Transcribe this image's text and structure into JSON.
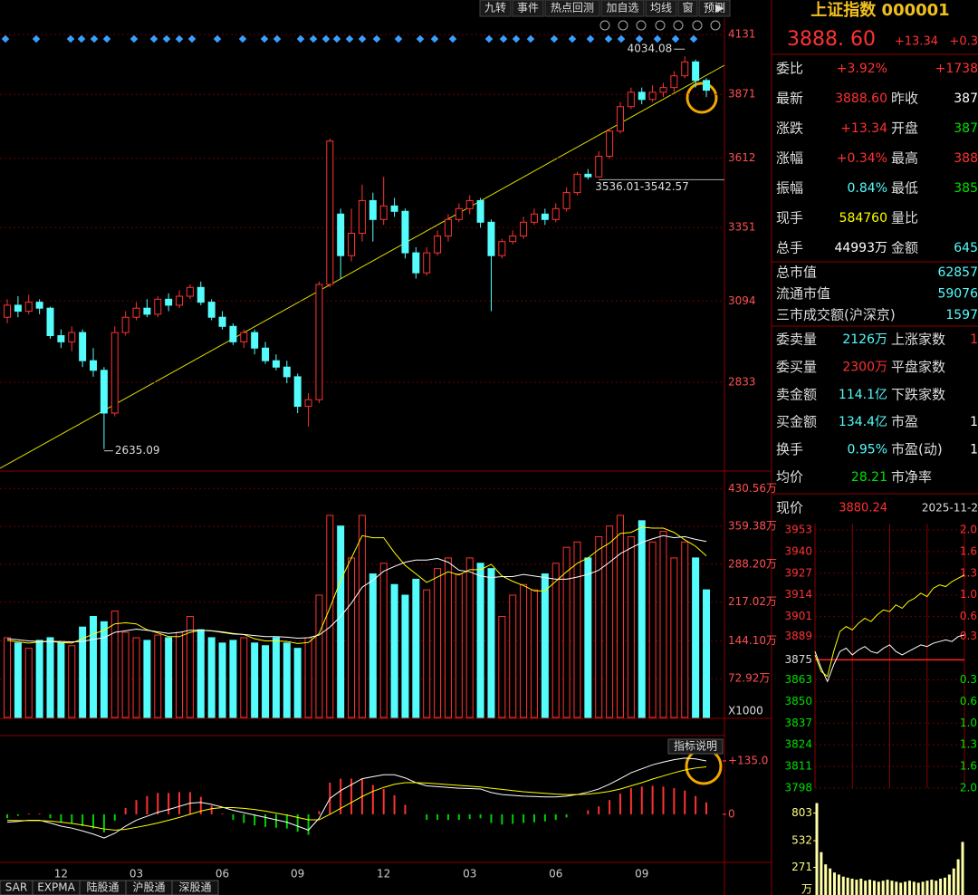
{
  "toolbar": {
    "buttons": [
      "九转",
      "事件",
      "热点回测",
      "加自选",
      "均线",
      "窗",
      "预测"
    ]
  },
  "tabs": [
    "SAR",
    "EXPMA",
    "陆股通",
    "沪股通",
    "深股通"
  ],
  "chart_data": [
    {
      "type": "candlestick",
      "categories": [
        null,
        null,
        null,
        null,
        null,
        "12",
        null,
        null,
        null,
        null,
        null,
        null,
        "03",
        null,
        null,
        null,
        null,
        null,
        null,
        null,
        "06",
        null,
        null,
        null,
        null,
        null,
        null,
        "09",
        null,
        null,
        null,
        null,
        null,
        null,
        null,
        "12",
        null,
        null,
        null,
        null,
        null,
        null,
        null,
        "03",
        null,
        null,
        null,
        null,
        null,
        null,
        null,
        "06",
        null,
        null,
        null,
        null,
        null,
        null,
        null,
        "09",
        null,
        null,
        null,
        null,
        null,
        null
      ],
      "open": [
        3040,
        3080,
        3060,
        3090,
        3070,
        2980,
        2960,
        2990,
        2900,
        2870,
        2740,
        2990,
        3040,
        3070,
        3050,
        3100,
        3080,
        3110,
        3140,
        3090,
        3040,
        3010,
        2960,
        2990,
        2940,
        2900,
        2880,
        2850,
        2760,
        2780,
        3150,
        3400,
        3250,
        3330,
        3450,
        3380,
        3430,
        3410,
        3260,
        3190,
        3260,
        3320,
        3380,
        3420,
        3450,
        3370,
        3250,
        3300,
        3320,
        3370,
        3400,
        3380,
        3420,
        3480,
        3550,
        3540,
        3620,
        3720,
        3820,
        3880,
        3850,
        3880,
        3900,
        3950,
        4010,
        3930
      ],
      "close": [
        3080,
        3060,
        3090,
        3070,
        2980,
        2960,
        2990,
        2900,
        2870,
        2740,
        2990,
        3040,
        3070,
        3050,
        3100,
        3080,
        3110,
        3140,
        3090,
        3040,
        3010,
        2960,
        2990,
        2940,
        2900,
        2880,
        2850,
        2760,
        2780,
        3150,
        3680,
        3250,
        3330,
        3450,
        3380,
        3430,
        3410,
        3260,
        3190,
        3260,
        3320,
        3380,
        3420,
        3450,
        3370,
        3250,
        3300,
        3320,
        3370,
        3400,
        3380,
        3420,
        3480,
        3550,
        3540,
        3620,
        3720,
        3820,
        3880,
        3850,
        3880,
        3900,
        3950,
        4010,
        3930,
        3888.6
      ],
      "high": [
        3100,
        3110,
        3115,
        3100,
        3075,
        3000,
        3010,
        3000,
        2940,
        2880,
        3010,
        3060,
        3090,
        3100,
        3110,
        3120,
        3130,
        3150,
        3160,
        3100,
        3060,
        3020,
        3000,
        3000,
        2960,
        2920,
        2900,
        2860,
        2800,
        3160,
        3690,
        3420,
        3420,
        3510,
        3480,
        3540,
        3460,
        3420,
        3280,
        3280,
        3340,
        3400,
        3440,
        3470,
        3460,
        3380,
        3310,
        3340,
        3390,
        3420,
        3420,
        3440,
        3500,
        3560,
        3570,
        3640,
        3730,
        3840,
        3900,
        3900,
        3910,
        3920,
        3970,
        4034.08,
        4020,
        3940
      ],
      "low": [
        3020,
        3040,
        3050,
        3050,
        2970,
        2940,
        2930,
        2880,
        2850,
        2635.09,
        2730,
        2980,
        3030,
        3040,
        3040,
        3060,
        3070,
        3100,
        3080,
        3030,
        3000,
        2950,
        2940,
        2920,
        2890,
        2870,
        2830,
        2740,
        2700,
        2770,
        3140,
        3170,
        3230,
        3300,
        3300,
        3360,
        3390,
        3240,
        3170,
        3180,
        3250,
        3300,
        3370,
        3400,
        3350,
        3060,
        3240,
        3290,
        3310,
        3360,
        3360,
        3370,
        3410,
        3470,
        3530,
        3536.01,
        3610,
        3710,
        3810,
        3830,
        3840,
        3860,
        3880,
        3940,
        3900,
        3860
      ],
      "ylim": [
        2578,
        4205
      ],
      "log_scale": true,
      "yticks": [
        4131,
        3871,
        3612,
        3351,
        3094,
        2833
      ],
      "grid": true,
      "up_color": "#ff3232",
      "down_color": "#54fcfc",
      "annotations": [
        "4034.08",
        "3536.01-3542.57",
        "2635.09"
      ]
    },
    {
      "type": "bar",
      "values": [
        150,
        140,
        130,
        145,
        150,
        140,
        135,
        170,
        190,
        180,
        200,
        160,
        150,
        145,
        155,
        150,
        160,
        190,
        165,
        150,
        140,
        145,
        150,
        140,
        135,
        150,
        140,
        130,
        150,
        230,
        380,
        360,
        300,
        380,
        270,
        290,
        250,
        230,
        260,
        240,
        280,
        300,
        270,
        300,
        290,
        280,
        190,
        230,
        250,
        240,
        270,
        290,
        320,
        330,
        300,
        340,
        360,
        380,
        340,
        370,
        330,
        350,
        300,
        330,
        300,
        240
      ],
      "lines": [
        {
          "color": "#ffff00",
          "values": [
            145,
            142,
            140,
            142,
            143,
            141,
            140,
            148,
            157,
            164,
            176,
            178,
            176,
            165,
            159,
            152,
            152,
            160,
            164,
            163,
            161,
            158,
            156,
            148,
            144,
            144,
            143,
            139,
            141,
            158,
            206,
            258,
            300,
            342,
            338,
            338,
            310,
            286,
            270,
            254,
            264,
            274,
            268,
            278,
            278,
            288,
            266,
            256,
            248,
            238,
            238,
            256,
            274,
            290,
            300,
            316,
            328,
            346,
            348,
            358,
            356,
            356,
            348,
            334,
            322,
            304
          ]
        },
        {
          "color": "#ffffff",
          "values": [
            148,
            146,
            144,
            143,
            143,
            143,
            142,
            143,
            147,
            150,
            160,
            163,
            166,
            164,
            161,
            158,
            160,
            164,
            164,
            163,
            160,
            157,
            156,
            154,
            152,
            152,
            151,
            149,
            150,
            155,
            170,
            190,
            215,
            245,
            258,
            275,
            284,
            292,
            296,
            296,
            299,
            292,
            277,
            274,
            266,
            263,
            265,
            265,
            269,
            266,
            263,
            260,
            260,
            264,
            269,
            277,
            292,
            308,
            319,
            329,
            336,
            342,
            338,
            340,
            335,
            331
          ]
        }
      ],
      "ylim": [
        0,
        460
      ],
      "yticks": [
        {
          "value": 430.56,
          "label": "430.56万"
        },
        {
          "value": 359.38,
          "label": "359.38万"
        },
        {
          "value": 288.2,
          "label": "288.20万"
        },
        {
          "value": 217.02,
          "label": "217.02万"
        },
        {
          "value": 144.1,
          "label": "144.10万"
        },
        {
          "value": 72.92,
          "label": "72.92万"
        }
      ],
      "unit_note": "X1000",
      "grid": true
    },
    {
      "type": "macd",
      "values": [
        -10,
        -4,
        2,
        2,
        -10,
        -20,
        -24,
        -30,
        -36,
        -46,
        -16,
        16,
        36,
        46,
        54,
        54,
        56,
        56,
        44,
        22,
        2,
        -14,
        -22,
        -28,
        -32,
        -34,
        -36,
        -44,
        -52,
        8,
        80,
        90,
        90,
        90,
        74,
        64,
        48,
        24,
        0,
        -14,
        -14,
        -14,
        -14,
        -12,
        -10,
        -22,
        -26,
        -24,
        -22,
        -20,
        -18,
        -14,
        -8,
        0,
        10,
        20,
        36,
        52,
        66,
        70,
        72,
        70,
        66,
        60,
        46,
        30
      ],
      "lines": [
        {
          "color": "#ffffff",
          "values": [
            -20,
            -18,
            -15,
            -15,
            -22,
            -30,
            -35,
            -42,
            -50,
            -60,
            -48,
            -30,
            -15,
            -5,
            5,
            12,
            20,
            28,
            30,
            25,
            18,
            10,
            4,
            -2,
            -8,
            -14,
            -20,
            -30,
            -40,
            -10,
            40,
            60,
            75,
            90,
            95,
            100,
            100,
            92,
            80,
            72,
            70,
            68,
            66,
            65,
            64,
            55,
            50,
            48,
            46,
            45,
            44,
            44,
            46,
            50,
            56,
            64,
            76,
            90,
            105,
            115,
            125,
            132,
            138,
            142,
            140,
            135
          ]
        },
        {
          "color": "#ffff00",
          "values": [
            -15,
            -16,
            -16,
            -16,
            -17,
            -20,
            -23,
            -27,
            -32,
            -37,
            -40,
            -38,
            -33,
            -28,
            -22,
            -15,
            -8,
            0,
            8,
            14,
            17,
            17,
            15,
            12,
            8,
            3,
            -2,
            -8,
            -14,
            -14,
            0,
            15,
            30,
            45,
            58,
            68,
            76,
            80,
            80,
            79,
            77,
            75,
            73,
            71,
            69,
            66,
            63,
            60,
            57,
            55,
            53,
            51,
            50,
            50,
            51,
            54,
            58,
            64,
            72,
            80,
            89,
            97,
            105,
            112,
            117,
            120
          ]
        }
      ],
      "ylim": [
        -117,
        199
      ],
      "yticks": [
        {
          "value": 135,
          "label": "+135.0"
        },
        0
      ],
      "up_color": "#ff3232",
      "down_color": "#00d000",
      "note": "指标说明"
    },
    {
      "type": "line",
      "series": [
        {
          "color": "#ffffff",
          "values": [
            3880,
            3870,
            3862,
            3872,
            3880,
            3882,
            3878,
            3881,
            3883,
            3880,
            3879,
            3882,
            3884,
            3880,
            3878,
            3880,
            3882,
            3884,
            3883,
            3885,
            3886,
            3887,
            3886,
            3889,
            3890
          ]
        },
        {
          "color": "#ffff00",
          "values": [
            3878,
            3868,
            3865,
            3880,
            3892,
            3895,
            3893,
            3897,
            3900,
            3898,
            3902,
            3905,
            3904,
            3908,
            3906,
            3910,
            3912,
            3915,
            3913,
            3918,
            3920,
            3919,
            3922,
            3924,
            3926
          ]
        }
      ],
      "ylim": [
        3798,
        3953
      ],
      "yticks": [
        3953,
        3940,
        3927,
        3914,
        3901,
        3889,
        3875,
        3863,
        3850,
        3837,
        3824,
        3811,
        3798
      ],
      "pct_labels": [
        "2.0",
        "1.6",
        "1.3",
        "1.0",
        "0.6",
        "0.3",
        "0.3",
        "0.6",
        "1.0",
        "1.3",
        "1.6",
        "2.0"
      ],
      "grid": true
    },
    {
      "type": "bar",
      "values": [
        900,
        420,
        300,
        260,
        220,
        200,
        180,
        170,
        160,
        150,
        160,
        140,
        150,
        140,
        130,
        140,
        150,
        140,
        130,
        120,
        130,
        140,
        130,
        120,
        130,
        140,
        150,
        140,
        160,
        170,
        200,
        260,
        350,
        520
      ],
      "ylim": [
        0,
        958
      ],
      "yticks": [
        803,
        532,
        271
      ],
      "unit_label": "万",
      "color": "#ffffa8"
    }
  ],
  "quote": {
    "title": "上证指数 000001",
    "price": "3888. 60",
    "change": "+13.34",
    "pct": "+0.3",
    "rows": [
      {
        "label": "委比",
        "value": "+3.92%",
        "color": "#ff3232",
        "value2": "+1738",
        "color2": "#ff3232"
      },
      {
        "label": "最新",
        "value": "3888.60",
        "color": "#ff3232",
        "label2": "昨收",
        "value2": "387",
        "color2": "#ffffff"
      },
      {
        "label": "涨跌",
        "value": "+13.34",
        "color": "#ff3232",
        "label2": "开盘",
        "value2": "387",
        "color2": "#00e000"
      },
      {
        "label": "涨幅",
        "value": "+0.34%",
        "color": "#ff3232",
        "label2": "最高",
        "value2": "388",
        "color2": "#ff3232"
      },
      {
        "label": "振幅",
        "value": "0.84%",
        "color": "#54fcfc",
        "label2": "最低",
        "value2": "385",
        "color2": "#00e000"
      },
      {
        "label": "现手",
        "value": "584760",
        "color": "#ffff00",
        "label2": "量比"
      },
      {
        "label": "总手",
        "value": "44993万",
        "color": "#ffffff",
        "label2": "金额",
        "value2": "645",
        "color2": "#54fcfc"
      }
    ],
    "market": [
      {
        "label": "总市值",
        "value": "62857"
      },
      {
        "label": "流通市值",
        "value": "59076"
      },
      {
        "label": "三市成交额(沪深京)",
        "value": "1597"
      }
    ],
    "rows2": [
      {
        "label": "委卖量",
        "value": "2126万",
        "color": "#54fcfc",
        "label2": "上涨家数",
        "value2": "1",
        "color2": "#ff3232"
      },
      {
        "label": "委买量",
        "value": "2300万",
        "color": "#ff3232",
        "label2": "平盘家数"
      },
      {
        "label": "卖金额",
        "value": "114.1亿",
        "color": "#54fcfc",
        "label2": "下跌家数"
      },
      {
        "label": "买金额",
        "value": "134.4亿",
        "color": "#54fcfc",
        "label2": "市盈",
        "value2": "1",
        "color2": "#ffffff"
      },
      {
        "label": "换手",
        "value": "0.95%",
        "color": "#54fcfc",
        "label2": "市盈(动)",
        "value2": "1",
        "color2": "#ffffff"
      },
      {
        "label": "均价",
        "value": "28.21",
        "color": "#00e000",
        "label2": "市净率"
      }
    ],
    "now": {
      "label": "现价",
      "value": "3880.24",
      "date": "2025-11-2"
    }
  }
}
